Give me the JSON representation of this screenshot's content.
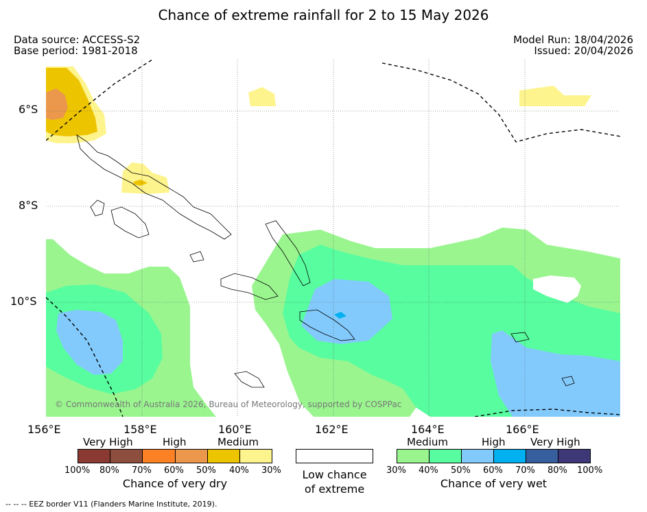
{
  "title": "Chance of extreme rainfall for 2 to 15 May 2026",
  "meta": {
    "data_source": "Data source: ACCESS-S2",
    "base_period": "Base period: 1981-2018",
    "model_run": "Model Run: 18/04/2026",
    "issued": "Issued: 20/04/2026"
  },
  "axes": {
    "lat_labels": [
      "6°S",
      "8°S",
      "10°S"
    ],
    "lon_labels": [
      "156°E",
      "158°E",
      "160°E",
      "162°E",
      "164°E",
      "166°E"
    ]
  },
  "copyright": "© Commonwealth of Australia 2026, Bureau of Meteorology, supported by COSPPac",
  "legend": {
    "dry": {
      "categories": [
        "Very High",
        "High",
        "Medium"
      ],
      "percents": [
        "100%",
        "80%",
        "70%",
        "60%",
        "50%",
        "40%",
        "30%"
      ],
      "caption": "Chance of very dry",
      "colors": [
        "#8b3a33",
        "#8e4e3e",
        "#fc8125",
        "#eb984d",
        "#edc400",
        "#fef48e"
      ]
    },
    "neutral": {
      "caption_line1": "Low chance",
      "caption_line2": "of extreme"
    },
    "wet": {
      "categories": [
        "Medium",
        "High",
        "Very High"
      ],
      "percents": [
        "30%",
        "40%",
        "50%",
        "60%",
        "70%",
        "80%",
        "100%"
      ],
      "caption": "Chance of very wet",
      "colors": [
        "#9af58f",
        "#57fd9f",
        "#83cafc",
        "#00b0f0",
        "#375f9e",
        "#3e3879"
      ]
    }
  },
  "footnote": "--  --  -- EEZ border V11 (Flanders Marine Institute, 2019)."
}
